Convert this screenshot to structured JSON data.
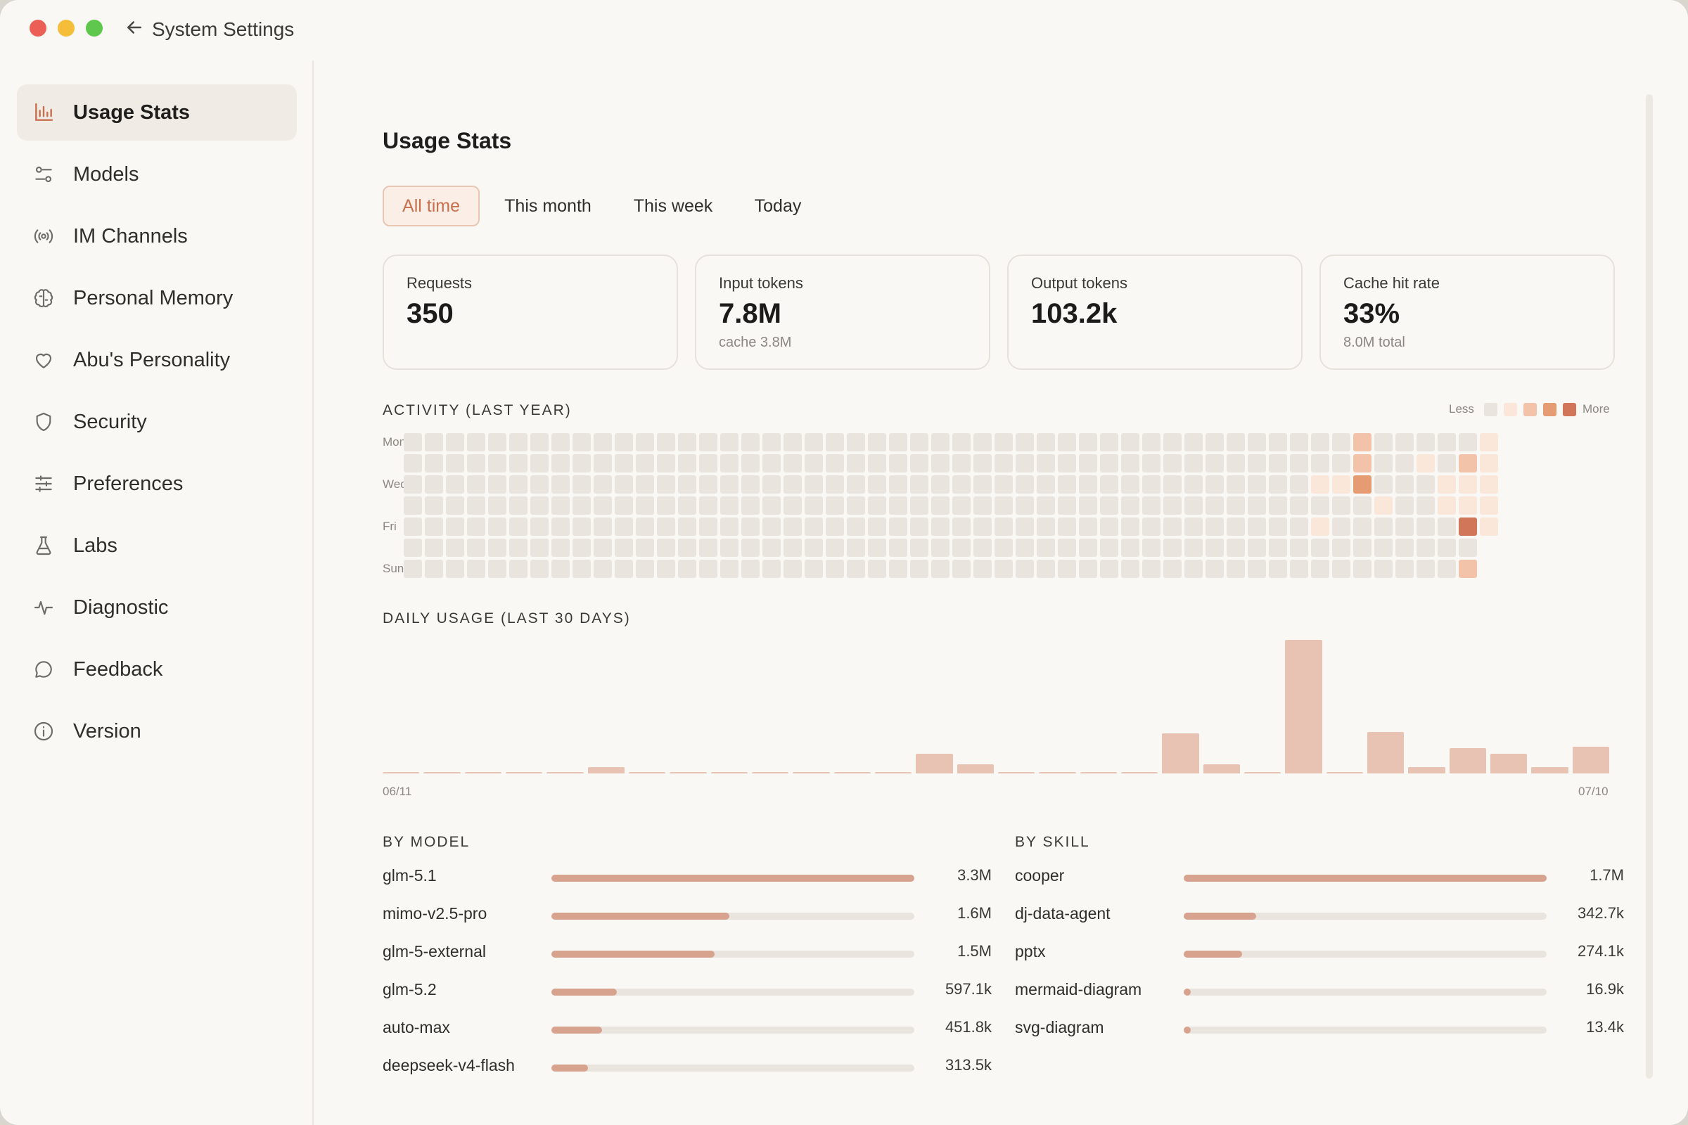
{
  "window": {
    "title": "System Settings"
  },
  "sidebar": {
    "items": [
      {
        "label": "Usage Stats",
        "icon": "bar-chart-icon",
        "active": true
      },
      {
        "label": "Models",
        "icon": "sliders-icon",
        "active": false
      },
      {
        "label": "IM Channels",
        "icon": "broadcast-icon",
        "active": false
      },
      {
        "label": "Personal Memory",
        "icon": "brain-icon",
        "active": false
      },
      {
        "label": "Abu's Personality",
        "icon": "heart-icon",
        "active": false
      },
      {
        "label": "Security",
        "icon": "shield-icon",
        "active": false
      },
      {
        "label": "Preferences",
        "icon": "tune-icon",
        "active": false
      },
      {
        "label": "Labs",
        "icon": "flask-icon",
        "active": false
      },
      {
        "label": "Diagnostic",
        "icon": "pulse-icon",
        "active": false
      },
      {
        "label": "Feedback",
        "icon": "chat-bubble-icon",
        "active": false
      },
      {
        "label": "Version",
        "icon": "info-icon",
        "active": false
      }
    ]
  },
  "main": {
    "title": "Usage Stats",
    "tabs": [
      {
        "label": "All time",
        "active": true
      },
      {
        "label": "This month",
        "active": false
      },
      {
        "label": "This week",
        "active": false
      },
      {
        "label": "Today",
        "active": false
      }
    ],
    "cards": [
      {
        "label": "Requests",
        "value": "350",
        "sub": ""
      },
      {
        "label": "Input tokens",
        "value": "7.8M",
        "sub": "cache 3.8M"
      },
      {
        "label": "Output tokens",
        "value": "103.2k",
        "sub": ""
      },
      {
        "label": "Cache hit rate",
        "value": "33%",
        "sub": "8.0M total"
      }
    ],
    "activity": {
      "title": "ACTIVITY (LAST YEAR)",
      "legend_less": "Less",
      "legend_more": "More",
      "day_labels": [
        "Mon",
        "Wed",
        "Fri",
        "Sun"
      ]
    },
    "daily": {
      "title": "DAILY USAGE (LAST 30 DAYS)",
      "start_label": "06/11",
      "end_label": "07/10"
    },
    "by_model": {
      "title": "BY MODEL",
      "rows": [
        {
          "name": "glm-5.1",
          "value": "3.3M",
          "fraction": 1.0
        },
        {
          "name": "mimo-v2.5-pro",
          "value": "1.6M",
          "fraction": 0.49
        },
        {
          "name": "glm-5-external",
          "value": "1.5M",
          "fraction": 0.45
        },
        {
          "name": "glm-5.2",
          "value": "597.1k",
          "fraction": 0.18
        },
        {
          "name": "auto-max",
          "value": "451.8k",
          "fraction": 0.14
        },
        {
          "name": "deepseek-v4-flash",
          "value": "313.5k",
          "fraction": 0.1
        }
      ]
    },
    "by_skill": {
      "title": "BY SKILL",
      "rows": [
        {
          "name": "cooper",
          "value": "1.7M",
          "fraction": 1.0
        },
        {
          "name": "dj-data-agent",
          "value": "342.7k",
          "fraction": 0.2
        },
        {
          "name": "pptx",
          "value": "274.1k",
          "fraction": 0.16
        },
        {
          "name": "mermaid-diagram",
          "value": "16.9k",
          "fraction": 0.02
        },
        {
          "name": "svg-diagram",
          "value": "13.4k",
          "fraction": 0.015
        }
      ]
    }
  },
  "chart_data": [
    {
      "type": "bar",
      "title": "DAILY USAGE (LAST 30 DAYS)",
      "x_start": "06/11",
      "x_end": "07/10",
      "values": [
        0.01,
        0.01,
        0.01,
        0.01,
        0.01,
        0.05,
        0.01,
        0.01,
        0.01,
        0.01,
        0.01,
        0.01,
        0.01,
        0.15,
        0.07,
        0.01,
        0.01,
        0.01,
        0.01,
        0.3,
        0.07,
        0.01,
        1.0,
        0.01,
        0.31,
        0.05,
        0.19,
        0.15,
        0.05,
        0.2
      ],
      "ylim": [
        0,
        1
      ]
    },
    {
      "type": "heatmap",
      "title": "ACTIVITY (LAST YEAR)",
      "levels": [
        0,
        1,
        2,
        3,
        4
      ],
      "colors": [
        "#e9e5de",
        "#fbe6da",
        "#f2c3a8",
        "#e69c72",
        "#d2765a"
      ],
      "active_cells": [
        {
          "week": 45,
          "day": 0,
          "level": 2
        },
        {
          "week": 45,
          "day": 1,
          "level": 2
        },
        {
          "week": 45,
          "day": 2,
          "level": 3
        },
        {
          "week": 43,
          "day": 2,
          "level": 1
        },
        {
          "week": 44,
          "day": 2,
          "level": 1
        },
        {
          "week": 43,
          "day": 4,
          "level": 1
        },
        {
          "week": 46,
          "day": 3,
          "level": 1
        },
        {
          "week": 48,
          "day": 1,
          "level": 1
        },
        {
          "week": 49,
          "day": 2,
          "level": 1
        },
        {
          "week": 49,
          "day": 3,
          "level": 1
        },
        {
          "week": 50,
          "day": 1,
          "level": 2
        },
        {
          "week": 50,
          "day": 2,
          "level": 1
        },
        {
          "week": 50,
          "day": 3,
          "level": 1
        },
        {
          "week": 50,
          "day": 4,
          "level": 4
        },
        {
          "week": 50,
          "day": 6,
          "level": 2
        },
        {
          "week": 51,
          "day": 0,
          "level": 1
        },
        {
          "week": 51,
          "day": 1,
          "level": 1
        },
        {
          "week": 51,
          "day": 2,
          "level": 1
        },
        {
          "week": 51,
          "day": 3,
          "level": 1
        },
        {
          "week": 51,
          "day": 4,
          "level": 1
        }
      ]
    }
  ]
}
